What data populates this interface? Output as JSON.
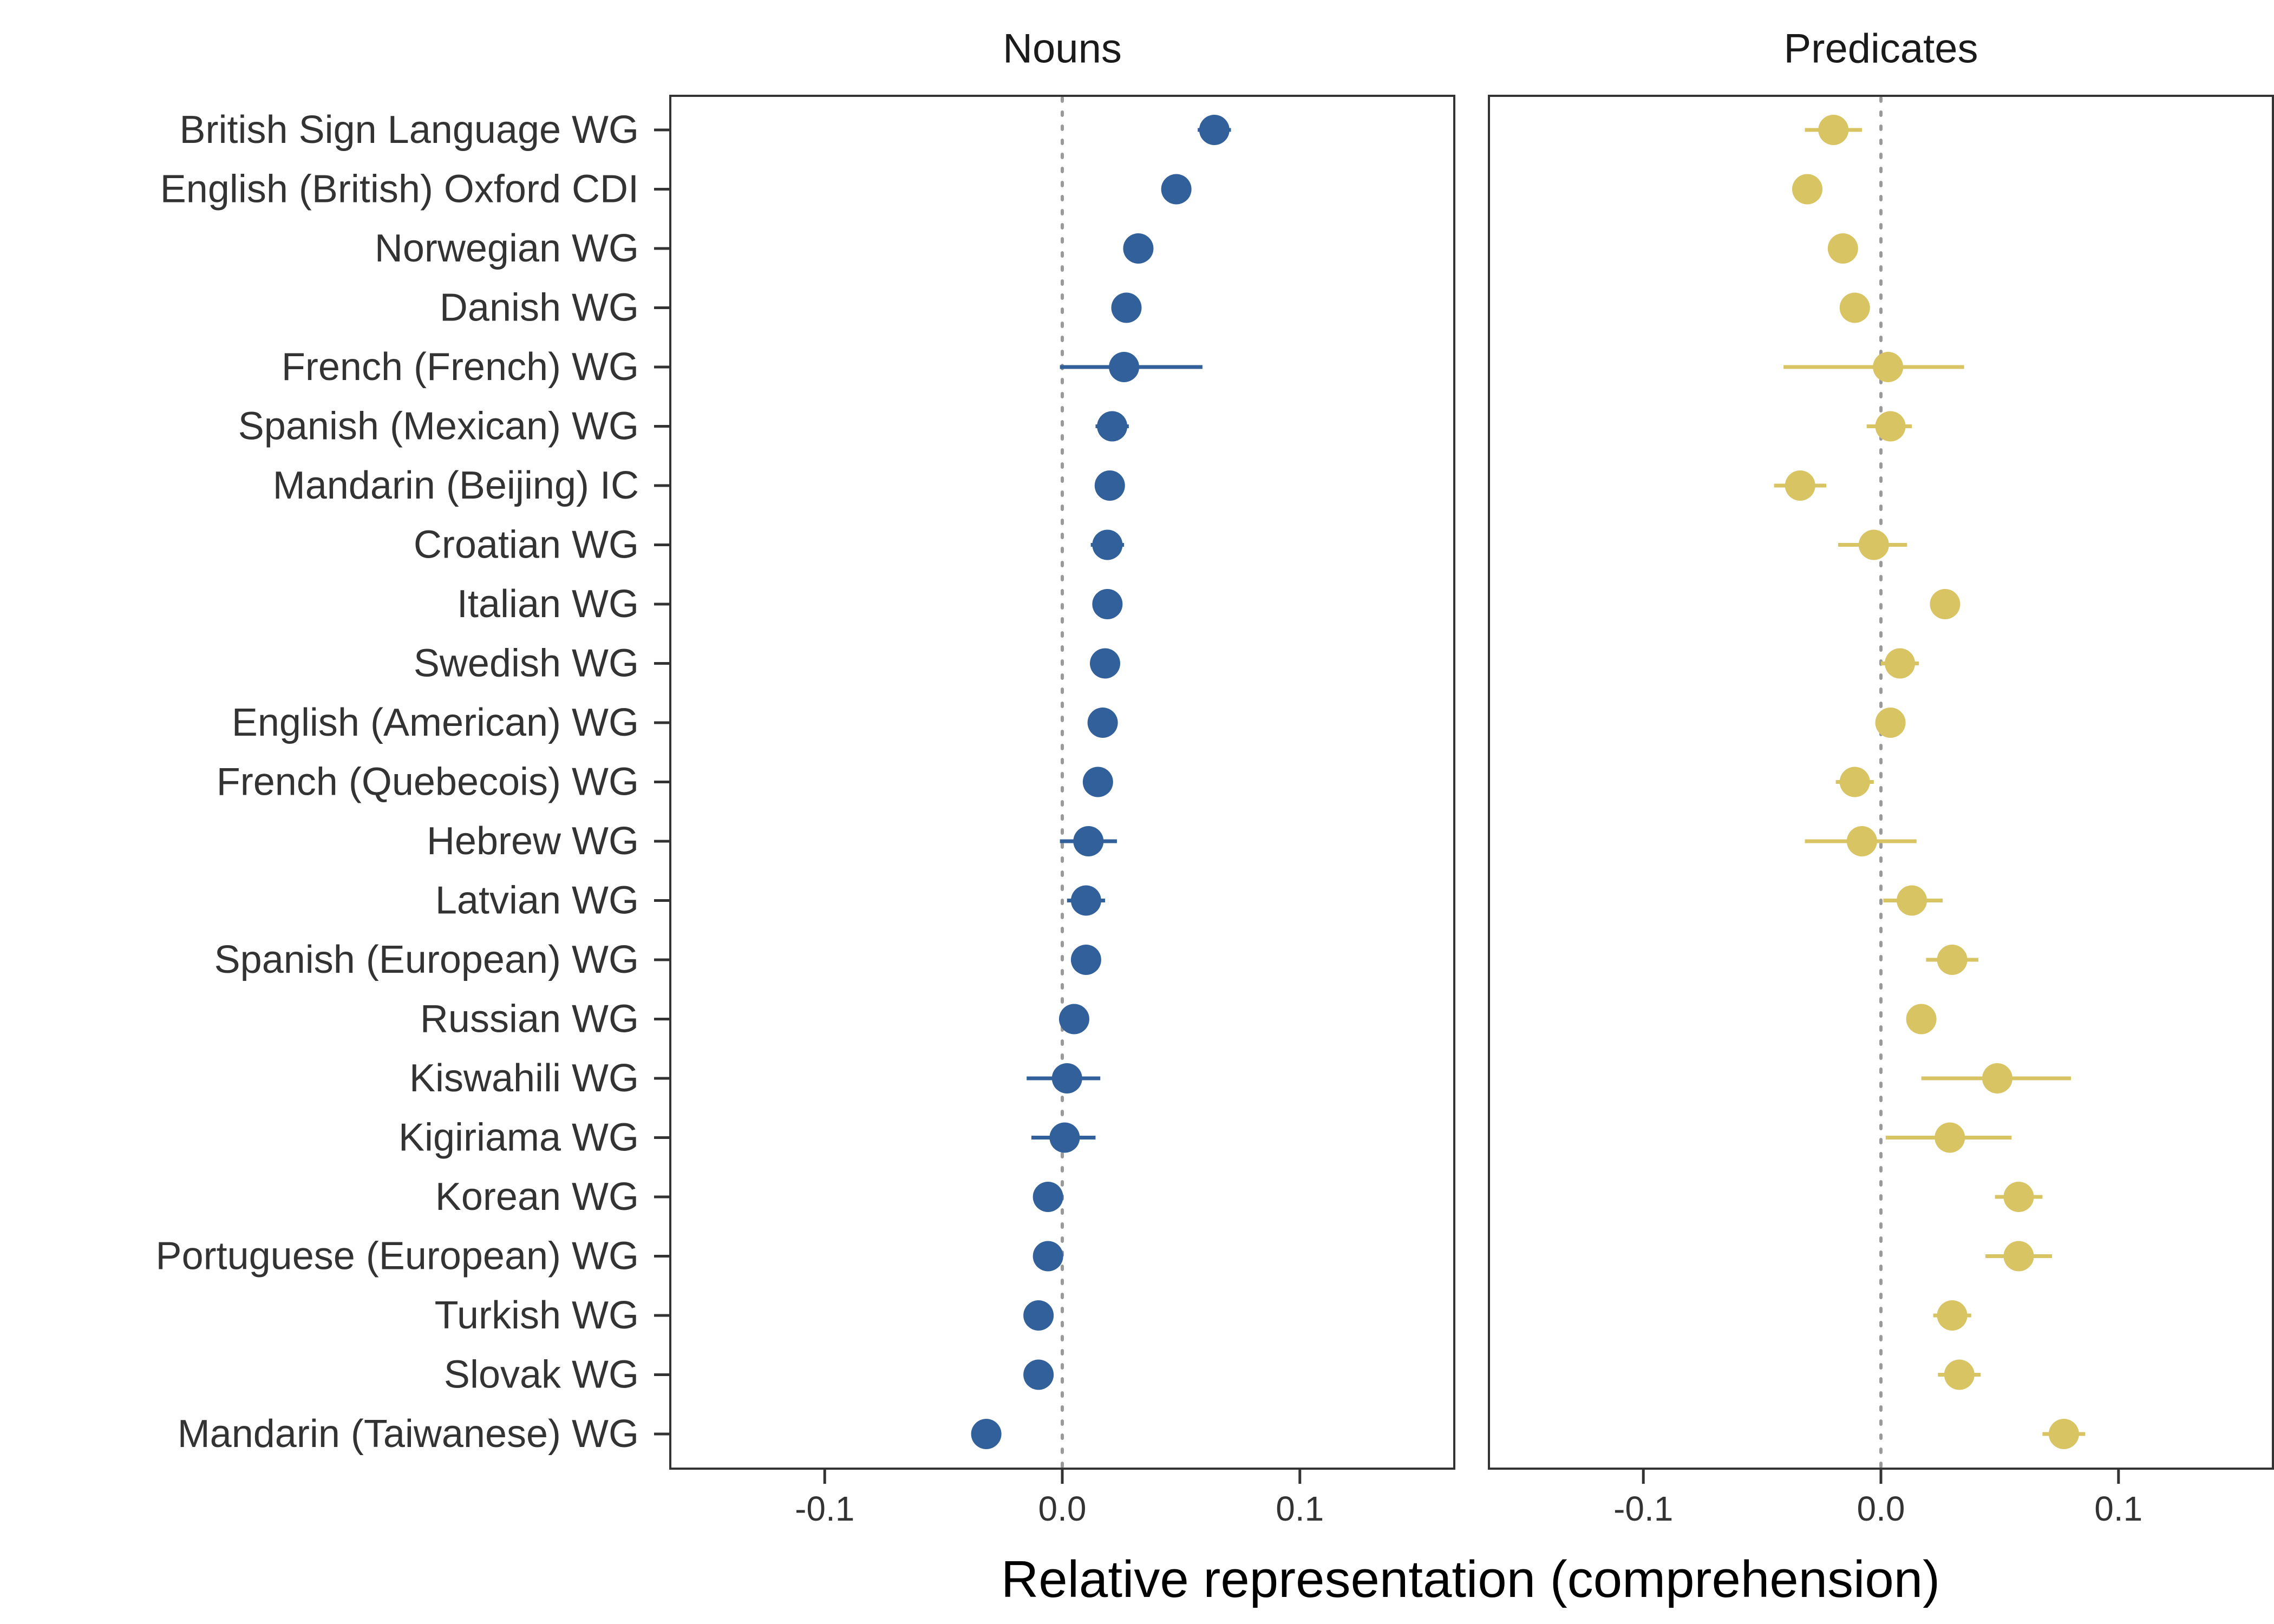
{
  "chart_data": {
    "type": "scatter",
    "xlabel": "Relative representation (comprehension)",
    "xlim": [
      -0.165,
      0.165
    ],
    "x_ticks": [
      {
        "value": -0.1,
        "label": "-0.1"
      },
      {
        "value": 0.0,
        "label": "0.0"
      },
      {
        "value": 0.1,
        "label": "0.1"
      }
    ],
    "reference_line_x": 0,
    "categories": [
      "British Sign Language WG",
      "English (British) Oxford CDI",
      "Norwegian WG",
      "Danish WG",
      "French (French) WG",
      "Spanish (Mexican) WG",
      "Mandarin (Beijing) IC",
      "Croatian WG",
      "Italian WG",
      "Swedish WG",
      "English (American) WG",
      "French (Quebecois) WG",
      "Hebrew WG",
      "Latvian WG",
      "Spanish (European) WG",
      "Russian WG",
      "Kiswahili WG",
      "Kigiriama WG",
      "Korean WG",
      "Portuguese (European) WG",
      "Turkish WG",
      "Slovak WG",
      "Mandarin (Taiwanese) WG"
    ],
    "series": [
      {
        "name": "Nouns",
        "color": "#31609b",
        "values": [
          0.064,
          0.048,
          0.032,
          0.027,
          0.026,
          0.021,
          0.02,
          0.019,
          0.019,
          0.018,
          0.017,
          0.015,
          0.011,
          0.01,
          0.01,
          0.005,
          0.002,
          0.001,
          -0.006,
          -0.006,
          -0.01,
          -0.01,
          -0.032
        ],
        "ci_low": [
          0.057,
          0.046,
          0.03,
          0.025,
          -0.001,
          0.014,
          0.018,
          0.012,
          0.017,
          0.016,
          0.015,
          0.013,
          -0.001,
          0.002,
          0.008,
          0.003,
          -0.015,
          -0.013,
          -0.008,
          -0.008,
          -0.012,
          -0.012,
          -0.034
        ],
        "ci_high": [
          0.071,
          0.05,
          0.034,
          0.029,
          0.059,
          0.028,
          0.022,
          0.026,
          0.021,
          0.02,
          0.019,
          0.017,
          0.023,
          0.018,
          0.012,
          0.007,
          0.016,
          0.014,
          -0.004,
          -0.004,
          -0.008,
          -0.008,
          -0.03
        ]
      },
      {
        "name": "Predicates",
        "color": "#d8c463",
        "values": [
          -0.02,
          -0.031,
          -0.016,
          -0.011,
          0.003,
          0.004,
          -0.034,
          -0.003,
          0.027,
          0.008,
          0.004,
          -0.011,
          -0.008,
          0.013,
          0.03,
          0.017,
          0.049,
          0.029,
          0.058,
          0.058,
          0.03,
          0.033,
          0.077
        ],
        "ci_low": [
          -0.032,
          -0.033,
          -0.018,
          -0.013,
          -0.041,
          -0.006,
          -0.045,
          -0.018,
          0.025,
          0.0,
          0.002,
          -0.019,
          -0.032,
          0.001,
          0.019,
          0.015,
          0.017,
          0.002,
          0.048,
          0.044,
          0.022,
          0.024,
          0.068
        ],
        "ci_high": [
          -0.008,
          -0.029,
          -0.014,
          -0.009,
          0.035,
          0.013,
          -0.023,
          0.011,
          0.029,
          0.016,
          0.006,
          -0.003,
          0.015,
          0.026,
          0.041,
          0.019,
          0.08,
          0.055,
          0.068,
          0.072,
          0.038,
          0.042,
          0.086
        ]
      }
    ],
    "grid": false,
    "legend": "none",
    "facets": "horizontal"
  }
}
